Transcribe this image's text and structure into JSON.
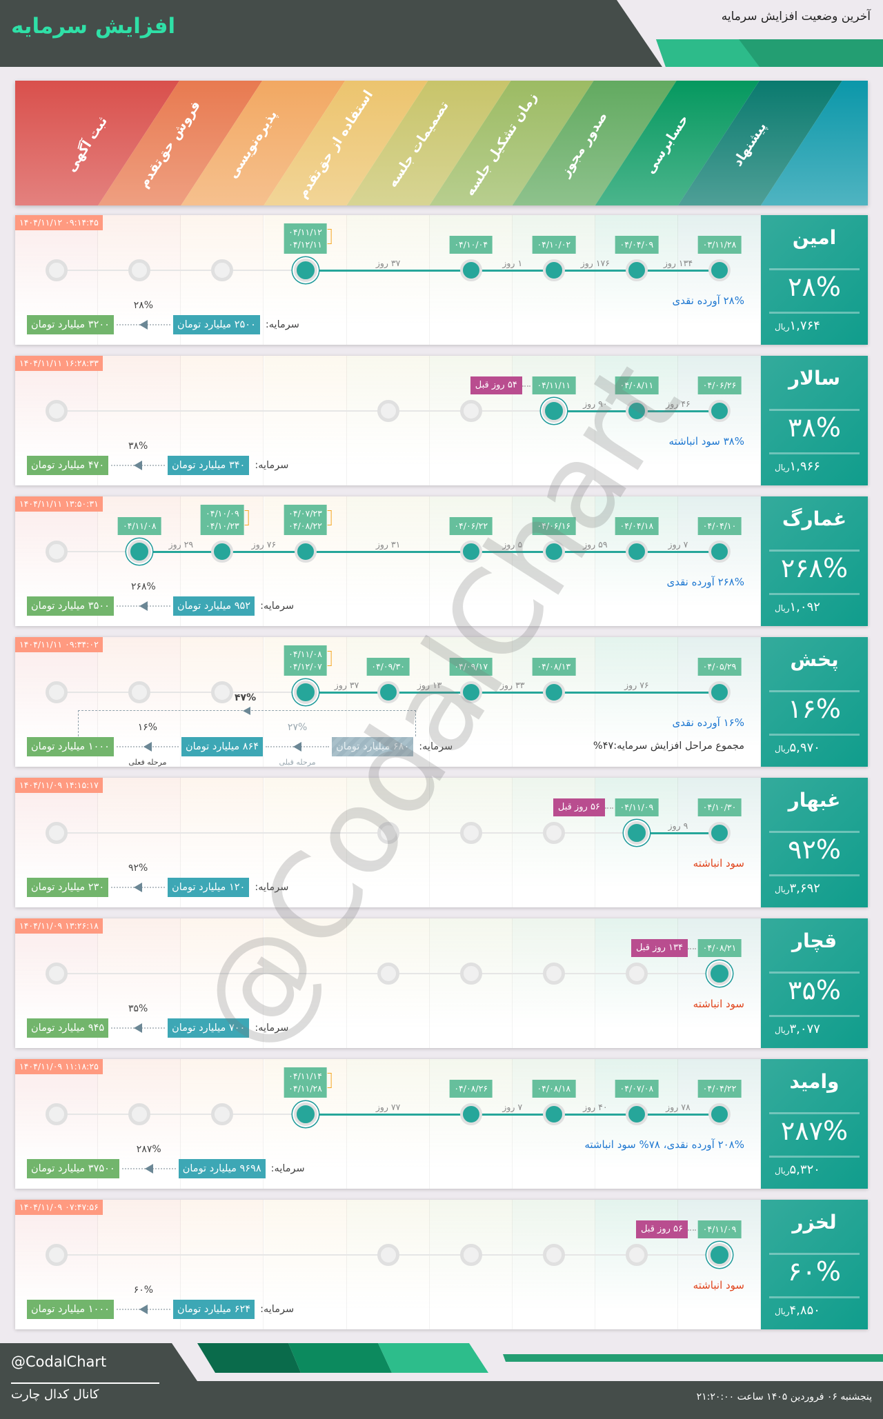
{
  "header": {
    "title": "افزایش سرمایه",
    "subtitle": "آخرین وضعیت افزایش سرمایه"
  },
  "stages": [
    "پیشنهاد",
    "حسابرسی",
    "صدور مجوز",
    "زمان تشکیل جلسه",
    "تصمیمات جلسه",
    "استفاده از حق‌تقدم",
    "پذیره‌نویسی",
    "فروش حق‌تقدم",
    "ثبت آگهی"
  ],
  "stage_colors": [
    "#0a7a6e",
    "#05985f",
    "#62aa60",
    "#9cbb63",
    "#c8c46a",
    "#ecc46e",
    "#f2a862",
    "#e87a50",
    "#d9504c"
  ],
  "colors": {
    "cash": "#1f78d1",
    "retained": "#e0441c",
    "accent": "#26a69a",
    "date_box": "#66bf9c",
    "ago_box": "#b94d8f",
    "timestamp": "#ff9a80"
  },
  "capital_label": "سرمایه:",
  "rows": [
    {
      "name": "امین",
      "pct": "۲۸%",
      "price": "۱,۷۶۴",
      "unit": "ریال",
      "timestamp": "۱۴۰۴/۱۱/۱۲ ۰۹:۱۴:۴۵",
      "desc": "۲۸% آورده نقدی",
      "desc_type": "cash",
      "steps": [
        {
          "stage": 0,
          "dates": [
            "۰۳/۱۱/۲۸"
          ]
        },
        {
          "stage": 1,
          "dates": [
            "۰۴/۰۴/۰۹"
          ],
          "gap": "۱۳۴ روز"
        },
        {
          "stage": 2,
          "dates": [
            "۰۴/۱۰/۰۲"
          ],
          "gap": "۱۷۶ روز"
        },
        {
          "stage": 3,
          "dates": [
            "۰۴/۱۰/۰۴"
          ],
          "gap": "۱ روز"
        },
        {
          "stage": 5,
          "dates": [
            "۰۴/۱۱/۱۲",
            "۰۴/۱۲/۱۱"
          ],
          "gap": "۳۷ روز",
          "current": true
        }
      ],
      "future": [
        6,
        7,
        8
      ],
      "capital": {
        "current": "۲۵۰۰ میلیارد تومان",
        "new": "۳۲۰۰ میلیارد تومان",
        "pct": "۲۸%"
      }
    },
    {
      "name": "سالار",
      "pct": "۳۸%",
      "price": "۱,۹۶۶",
      "unit": "ریال",
      "timestamp": "۱۴۰۴/۱۱/۱۱ ۱۶:۲۸:۳۳",
      "desc": "۳۸% سود انباشته",
      "desc_type": "cash",
      "steps": [
        {
          "stage": 0,
          "dates": [
            "۰۴/۰۶/۲۶"
          ]
        },
        {
          "stage": 1,
          "dates": [
            "۰۴/۰۸/۱۱"
          ],
          "gap": "۴۶ روز"
        },
        {
          "stage": 2,
          "dates": [
            "۰۴/۱۱/۱۱"
          ],
          "gap": "۹۰ روز",
          "current": true,
          "ago": "۵۴ روز قبل"
        }
      ],
      "future": [
        3,
        4,
        8
      ],
      "capital": {
        "current": "۳۴۰ میلیارد تومان",
        "new": "۴۷۰ میلیارد تومان",
        "pct": "۳۸%"
      }
    },
    {
      "name": "غمارگ",
      "pct": "۲۶۸%",
      "price": "۱,۰۹۲",
      "unit": "ریال",
      "timestamp": "۱۴۰۴/۱۱/۱۱ ۱۳:۵۰:۳۱",
      "desc": "۲۶۸% آورده نقدی",
      "desc_type": "cash",
      "steps": [
        {
          "stage": 0,
          "dates": [
            "۰۴/۰۴/۱۰"
          ]
        },
        {
          "stage": 1,
          "dates": [
            "۰۴/۰۴/۱۸"
          ],
          "gap": "۷ روز"
        },
        {
          "stage": 2,
          "dates": [
            "۰۴/۰۶/۱۶"
          ],
          "gap": "۵۹ روز"
        },
        {
          "stage": 3,
          "dates": [
            "۰۴/۰۶/۲۲"
          ],
          "gap": "۵ روز"
        },
        {
          "stage": 5,
          "dates": [
            "۰۴/۰۷/۲۳",
            "۰۴/۰۸/۲۲"
          ],
          "gap": "۳۱ روز"
        },
        {
          "stage": 6,
          "dates": [
            "۰۴/۱۰/۰۹",
            "۰۴/۱۰/۲۳"
          ],
          "gap": "۷۶ روز"
        },
        {
          "stage": 7,
          "dates": [
            "۰۴/۱۱/۰۸"
          ],
          "gap": "۲۹ روز",
          "current": true
        }
      ],
      "future": [
        8
      ],
      "capital": {
        "current": "۹۵۲ میلیارد تومان",
        "new": "۳۵۰۰ میلیارد تومان",
        "pct": "۲۶۸%"
      }
    },
    {
      "name": "پخش",
      "pct": "۱۶%",
      "price": "۵,۹۷۰",
      "unit": "ریال",
      "timestamp": "۱۴۰۴/۱۱/۱۱ ۰۹:۳۴:۰۲",
      "desc": "۱۶% آورده نقدی",
      "desc_type": "cash",
      "summary": "مجموع مراحل افزایش سرمایه:۴۷%",
      "steps": [
        {
          "stage": 0,
          "dates": [
            "۰۴/۰۵/۲۹"
          ]
        },
        {
          "stage": 2,
          "dates": [
            "۰۴/۰۸/۱۳"
          ],
          "gap": "۷۶ روز"
        },
        {
          "stage": 3,
          "dates": [
            "۰۴/۰۹/۱۷"
          ],
          "gap": "۳۳ روز"
        },
        {
          "stage": 4,
          "dates": [
            "۰۴/۰۹/۳۰"
          ],
          "gap": "۱۳ روز"
        },
        {
          "stage": 5,
          "dates": [
            "۰۴/۱۱/۰۸",
            "۰۴/۱۲/۰۷"
          ],
          "gap": "۳۷ روز",
          "current": true
        }
      ],
      "future": [
        6,
        7,
        8
      ],
      "capital": {
        "previous": "۶۸۰ میلیارد تومان",
        "current": "۸۶۴ میلیارد تومان",
        "new": "۱۰۰۰ میلیارد تومان",
        "pct": "۱۶%",
        "prev_pct": "۲۷%",
        "total_pct": "۴۷%",
        "current_stage_label": "مرحله فعلی",
        "prev_stage_label": "مرحله قبلی"
      }
    },
    {
      "name": "غبهار",
      "pct": "۹۲%",
      "price": "۳,۶۹۲",
      "unit": "ریال",
      "timestamp": "۱۴۰۴/۱۱/۰۹ ۱۴:۱۵:۱۷",
      "desc": "سود انباشته",
      "desc_type": "retained",
      "steps": [
        {
          "stage": 0,
          "dates": [
            "۰۴/۱۰/۳۰"
          ]
        },
        {
          "stage": 1,
          "dates": [
            "۰۴/۱۱/۰۹"
          ],
          "gap": "۹ روز",
          "current": true,
          "ago": "۵۶ روز قبل"
        }
      ],
      "future": [
        2,
        3,
        4,
        8
      ],
      "capital": {
        "current": "۱۲۰ میلیارد تومان",
        "new": "۲۳۰ میلیارد تومان",
        "pct": "۹۲%"
      }
    },
    {
      "name": "قچار",
      "pct": "۳۵%",
      "price": "۳,۰۷۷",
      "unit": "ریال",
      "timestamp": "۱۴۰۴/۱۱/۰۹ ۱۳:۲۶:۱۸",
      "desc": "سود انباشته",
      "desc_type": "retained",
      "steps": [
        {
          "stage": 0,
          "dates": [
            "۰۴/۰۸/۲۱"
          ],
          "current": true,
          "ago": "۱۳۴ روز قبل"
        }
      ],
      "future": [
        1,
        2,
        3,
        4,
        8
      ],
      "capital": {
        "current": "۷۰۰ میلیارد تومان",
        "new": "۹۴۵ میلیارد تومان",
        "pct": "۳۵%"
      }
    },
    {
      "name": "وامید",
      "pct": "۲۸۷%",
      "price": "۵,۳۲۰",
      "unit": "ریال",
      "timestamp": "۱۴۰۴/۱۱/۰۹ ۱۱:۱۸:۲۵",
      "desc": "۲۰۸% آورده نقدی، ۷۸% سود انباشته",
      "desc_type": "cash",
      "steps": [
        {
          "stage": 0,
          "dates": [
            "۰۴/۰۴/۲۲"
          ]
        },
        {
          "stage": 1,
          "dates": [
            "۰۴/۰۷/۰۸"
          ],
          "gap": "۷۸ روز"
        },
        {
          "stage": 2,
          "dates": [
            "۰۴/۰۸/۱۸"
          ],
          "gap": "۴۰ روز"
        },
        {
          "stage": 3,
          "dates": [
            "۰۴/۰۸/۲۶"
          ],
          "gap": "۷ روز"
        },
        {
          "stage": 5,
          "dates": [
            "۰۴/۱۱/۱۴",
            "۰۴/۱۱/۲۸"
          ],
          "gap": "۷۷ روز",
          "current": true
        }
      ],
      "future": [
        6,
        7,
        8
      ],
      "capital": {
        "current": "۹۶۹۸ میلیارد تومان",
        "new": "۳۷۵۰۰ میلیارد تومان",
        "pct": "۲۸۷%"
      }
    },
    {
      "name": "لخزر",
      "pct": "۶۰%",
      "price": "۴,۸۵۰",
      "unit": "ریال",
      "timestamp": "۱۴۰۴/۱۱/۰۹ ۰۷:۴۷:۵۶",
      "desc": "سود انباشته",
      "desc_type": "retained",
      "steps": [
        {
          "stage": 0,
          "dates": [
            "۰۴/۱۱/۰۹"
          ],
          "current": true,
          "ago": "۵۶ روز قبل"
        }
      ],
      "future": [
        1,
        2,
        3,
        4,
        8
      ],
      "capital": {
        "current": "۶۲۴ میلیارد تومان",
        "new": "۱۰۰۰ میلیارد تومان",
        "pct": "۶۰%"
      }
    }
  ],
  "watermark": "@CodalChart",
  "footer": {
    "handle": "@CodalChart",
    "channel": "کانال کدال چارت",
    "datetime": "پنجشنبه ۰۶ فروردین ۱۴۰۵ ساعت ۲۱:۲۰:۰۰"
  }
}
